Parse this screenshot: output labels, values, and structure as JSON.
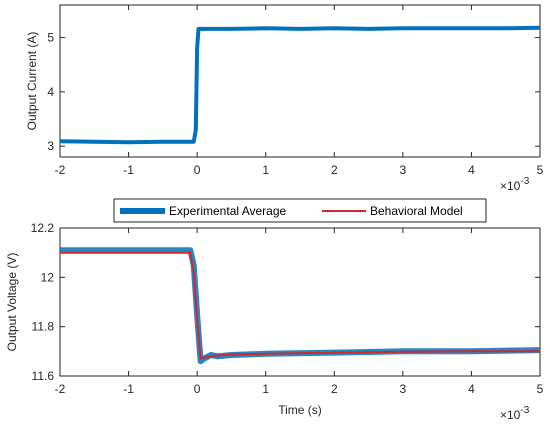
{
  "chart_data": [
    {
      "type": "line",
      "xlabel": "",
      "ylabel": "Output Current (A)",
      "xlim": [
        -2,
        5
      ],
      "ylim": [
        2.8,
        5.6
      ],
      "x_ticks": [
        -2,
        -1,
        0,
        1,
        2,
        3,
        4,
        5
      ],
      "x_tick_labels": [
        "-2",
        "-1",
        "0",
        "1",
        "2",
        "3",
        "4",
        "5"
      ],
      "y_ticks": [
        3,
        4,
        5
      ],
      "y_tick_labels": [
        "3",
        "4",
        "5"
      ],
      "x_multiplier": "×10",
      "x_multiplier_exp": "-3",
      "grid": false,
      "series": [
        {
          "color": "#0072BD",
          "x": [
            -2,
            -1.5,
            -1,
            -0.5,
            -0.05,
            -0.02,
            0,
            0.02,
            0.5,
            1,
            1.5,
            2,
            2.5,
            3,
            3.5,
            4,
            4.5,
            5
          ],
          "y": [
            3.09,
            3.08,
            3.07,
            3.08,
            3.08,
            3.3,
            4.8,
            5.16,
            5.16,
            5.17,
            5.16,
            5.17,
            5.16,
            5.17,
            5.17,
            5.17,
            5.17,
            5.18
          ]
        }
      ]
    },
    {
      "type": "line",
      "xlabel": "Time (s)",
      "ylabel": "Output Voltage (V)",
      "xlim": [
        -2,
        5
      ],
      "ylim": [
        11.6,
        12.2
      ],
      "x_ticks": [
        -2,
        -1,
        0,
        1,
        2,
        3,
        4,
        5
      ],
      "x_tick_labels": [
        "-2",
        "-1",
        "0",
        "1",
        "2",
        "3",
        "4",
        "5"
      ],
      "y_ticks": [
        11.6,
        11.8,
        12,
        12.2
      ],
      "y_tick_labels": [
        "11.6",
        "11.8",
        "12",
        "12.2"
      ],
      "x_multiplier": "×10",
      "x_multiplier_exp": "-3",
      "grid": false,
      "legend_position": "top",
      "series": [
        {
          "name": "Experimental Average",
          "color": "#0072BD",
          "x": [
            -2,
            -0.5,
            -0.1,
            -0.05,
            0,
            0.05,
            0.1,
            0.2,
            0.3,
            0.5,
            1,
            2,
            3,
            4,
            5
          ],
          "y": [
            12.11,
            12.11,
            12.11,
            12.05,
            11.85,
            11.66,
            11.67,
            11.685,
            11.68,
            11.685,
            11.69,
            11.695,
            11.7,
            11.7,
            11.705
          ]
        },
        {
          "name": "Behavioral Model",
          "color": "#D62728",
          "x": [
            -2,
            -0.5,
            -0.1,
            -0.05,
            0,
            0.05,
            0.1,
            0.2,
            0.3,
            0.5,
            1,
            2,
            3,
            4,
            5
          ],
          "y": [
            12.1,
            12.1,
            12.1,
            12.02,
            11.83,
            11.67,
            11.675,
            11.68,
            11.683,
            11.687,
            11.69,
            11.695,
            11.698,
            11.7,
            11.7
          ]
        }
      ]
    }
  ]
}
